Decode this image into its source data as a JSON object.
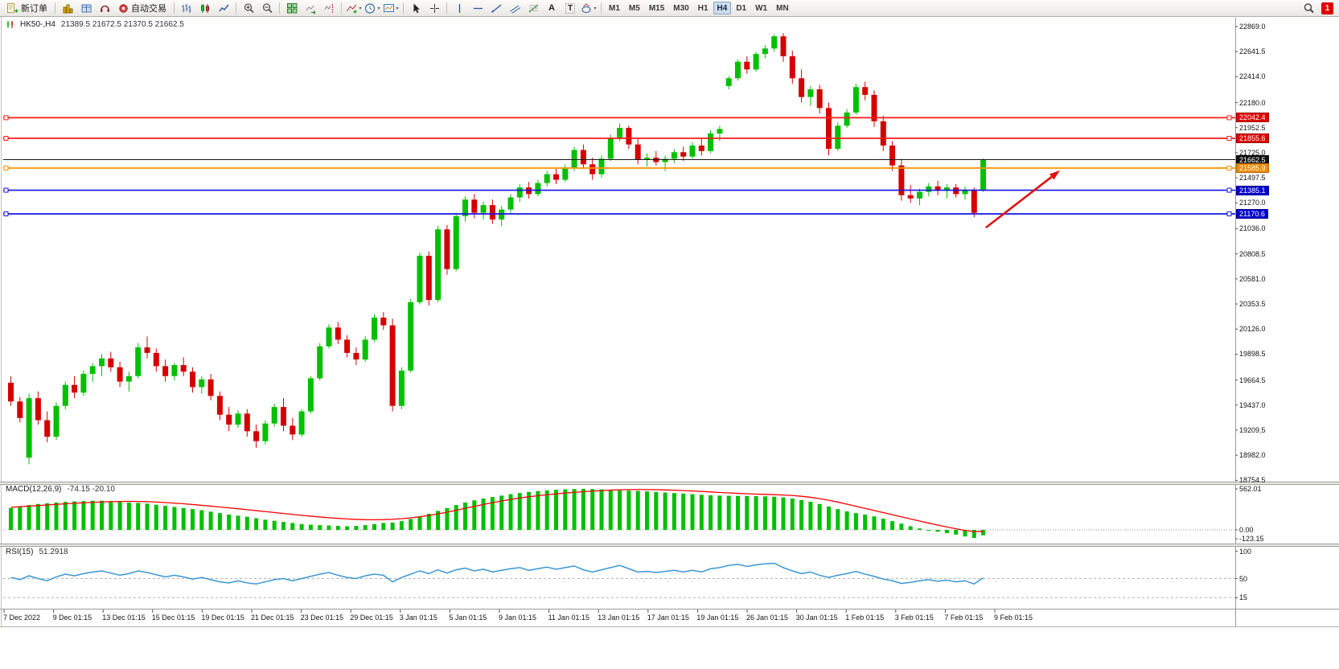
{
  "toolbar": {
    "new_order_label": "新订单",
    "auto_trading_label": "自动交易",
    "text_tool": "A",
    "label_tool": "T",
    "timeframes": [
      "M1",
      "M5",
      "M15",
      "M30",
      "H1",
      "H4",
      "D1",
      "W1",
      "MN"
    ],
    "active_timeframe": "H4",
    "notification_badge": "1"
  },
  "chart": {
    "title": "HK50-,H4",
    "ohlc": "21389.5 21672.5 21370.5 21662.5"
  },
  "colors": {
    "up_candle": "#00c000",
    "down_candle": "#d40000",
    "macd_histogram": "#00c000",
    "macd_signal": "#ff0000",
    "rsi_line": "#3c96d2"
  },
  "chart_data": {
    "type": "candlestick",
    "symbol": "HK50-",
    "timeframe": "H4",
    "price_axis_labels": [
      "22869.0",
      "22641.5",
      "22414.0",
      "22180.0",
      "21952.5",
      "21725.0",
      "21497.5",
      "21270.0",
      "21036.0",
      "20808.5",
      "20581.0",
      "20353.5",
      "20126.0",
      "19898.5",
      "19664.5",
      "19437.0",
      "19209.5",
      "18982.0",
      "18754.5"
    ],
    "time_axis_labels": [
      "7 Dec 2022",
      "9 Dec 01:15",
      "13 Dec 01:15",
      "15 Dec 01:15",
      "19 Dеc 01:15",
      "21 Dec 01:15",
      "23 Dec 01:15",
      "29 Dec 01:15",
      "3 Jan 01:15",
      "5 Jan 01:15",
      "9 Jan 01:15",
      "11 Jan 01:15",
      "13 Jan 01:15",
      "17 Jan 01:15",
      "19 Jan 01:15",
      "26 Jan 01:15",
      "30 Jan 01:15",
      "1 Feb 01:15",
      "3 Feb 01:15",
      "7 Feb 01:15",
      "9 Feb 01:15"
    ],
    "candles": [
      [
        19640,
        19700,
        19430,
        19470
      ],
      [
        19470,
        19510,
        19280,
        19320
      ],
      [
        18960,
        19540,
        18900,
        19500
      ],
      [
        19500,
        19560,
        19260,
        19300
      ],
      [
        19300,
        19380,
        19100,
        19150
      ],
      [
        19150,
        19460,
        19120,
        19430
      ],
      [
        19430,
        19650,
        19400,
        19620
      ],
      [
        19620,
        19700,
        19500,
        19550
      ],
      [
        19550,
        19750,
        19520,
        19720
      ],
      [
        19720,
        19820,
        19650,
        19790
      ],
      [
        19790,
        19900,
        19700,
        19860
      ],
      [
        19860,
        19920,
        19740,
        19780
      ],
      [
        19780,
        19830,
        19600,
        19650
      ],
      [
        19650,
        19740,
        19560,
        19700
      ],
      [
        19700,
        20000,
        19680,
        19960
      ],
      [
        19960,
        20060,
        19860,
        19910
      ],
      [
        19910,
        19950,
        19740,
        19790
      ],
      [
        19790,
        19850,
        19650,
        19700
      ],
      [
        19700,
        19820,
        19660,
        19800
      ],
      [
        19800,
        19870,
        19700,
        19740
      ],
      [
        19740,
        19780,
        19550,
        19600
      ],
      [
        19600,
        19700,
        19540,
        19670
      ],
      [
        19670,
        19720,
        19480,
        19520
      ],
      [
        19520,
        19560,
        19300,
        19350
      ],
      [
        19350,
        19420,
        19200,
        19260
      ],
      [
        19260,
        19390,
        19230,
        19360
      ],
      [
        19360,
        19400,
        19150,
        19200
      ],
      [
        19200,
        19260,
        19050,
        19110
      ],
      [
        19110,
        19300,
        19080,
        19270
      ],
      [
        19270,
        19450,
        19240,
        19420
      ],
      [
        19420,
        19500,
        19200,
        19250
      ],
      [
        19250,
        19320,
        19120,
        19170
      ],
      [
        19170,
        19400,
        19150,
        19380
      ],
      [
        19380,
        19700,
        19360,
        19680
      ],
      [
        19680,
        20000,
        19660,
        19970
      ],
      [
        19970,
        20170,
        19950,
        20140
      ],
      [
        20140,
        20190,
        19990,
        20030
      ],
      [
        20030,
        20070,
        19870,
        19910
      ],
      [
        19910,
        19960,
        19800,
        19850
      ],
      [
        19850,
        20060,
        19830,
        20030
      ],
      [
        20030,
        20260,
        20010,
        20230
      ],
      [
        20230,
        20280,
        20120,
        20160
      ],
      [
        20160,
        20220,
        19380,
        19430
      ],
      [
        19430,
        19780,
        19400,
        19750
      ],
      [
        19750,
        20400,
        19730,
        20370
      ],
      [
        20370,
        20820,
        20350,
        20790
      ],
      [
        20790,
        20830,
        20340,
        20390
      ],
      [
        20390,
        21060,
        20370,
        21030
      ],
      [
        21030,
        21070,
        20620,
        20670
      ],
      [
        20670,
        21180,
        20650,
        21150
      ],
      [
        21150,
        21330,
        21100,
        21300
      ],
      [
        21300,
        21350,
        21130,
        21180
      ],
      [
        21180,
        21280,
        21120,
        21250
      ],
      [
        21250,
        21300,
        21080,
        21120
      ],
      [
        21120,
        21240,
        21060,
        21210
      ],
      [
        21210,
        21350,
        21180,
        21320
      ],
      [
        21320,
        21440,
        21280,
        21410
      ],
      [
        21410,
        21460,
        21310,
        21350
      ],
      [
        21350,
        21480,
        21330,
        21450
      ],
      [
        21450,
        21560,
        21420,
        21530
      ],
      [
        21530,
        21580,
        21440,
        21480
      ],
      [
        21480,
        21620,
        21460,
        21590
      ],
      [
        21590,
        21780,
        21560,
        21750
      ],
      [
        21750,
        21800,
        21580,
        21620
      ],
      [
        21620,
        21680,
        21480,
        21530
      ],
      [
        21530,
        21700,
        21500,
        21670
      ],
      [
        21670,
        21890,
        21650,
        21860
      ],
      [
        21860,
        21990,
        21830,
        21950
      ],
      [
        21950,
        21970,
        21760,
        21800
      ],
      [
        21800,
        21850,
        21620,
        21660
      ],
      [
        21660,
        21720,
        21600,
        21680
      ],
      [
        21680,
        21740,
        21610,
        21640
      ],
      [
        21640,
        21700,
        21560,
        21670
      ],
      [
        21670,
        21760,
        21630,
        21730
      ],
      [
        21730,
        21780,
        21650,
        21690
      ],
      [
        21690,
        21820,
        21670,
        21790
      ],
      [
        21790,
        21850,
        21700,
        21740
      ],
      [
        21740,
        21930,
        21720,
        21900
      ],
      [
        21900,
        21970,
        21830,
        21940
      ],
      [
        22330,
        22420,
        22300,
        22400
      ],
      [
        22400,
        22570,
        22380,
        22550
      ],
      [
        22550,
        22600,
        22440,
        22480
      ],
      [
        22480,
        22640,
        22460,
        22620
      ],
      [
        22620,
        22700,
        22580,
        22670
      ],
      [
        22670,
        22800,
        22640,
        22780
      ],
      [
        22780,
        22810,
        22550,
        22600
      ],
      [
        22600,
        22650,
        22350,
        22400
      ],
      [
        22400,
        22480,
        22180,
        22230
      ],
      [
        22230,
        22330,
        22150,
        22300
      ],
      [
        22300,
        22340,
        22080,
        22130
      ],
      [
        22130,
        22180,
        21700,
        21760
      ],
      [
        21760,
        22000,
        21740,
        21970
      ],
      [
        21970,
        22120,
        21950,
        22090
      ],
      [
        22090,
        22350,
        22070,
        22320
      ],
      [
        22320,
        22370,
        22200,
        22250
      ],
      [
        22250,
        22290,
        21960,
        22010
      ],
      [
        22010,
        22060,
        21740,
        21790
      ],
      [
        21790,
        21830,
        21560,
        21610
      ],
      [
        21610,
        21670,
        21290,
        21340
      ],
      [
        21340,
        21430,
        21270,
        21310
      ],
      [
        21310,
        21400,
        21250,
        21370
      ],
      [
        21370,
        21450,
        21330,
        21420
      ],
      [
        21420,
        21470,
        21340,
        21380
      ],
      [
        21380,
        21440,
        21310,
        21410
      ],
      [
        21410,
        21440,
        21320,
        21350
      ],
      [
        21350,
        21420,
        21300,
        21390
      ],
      [
        21390,
        21410,
        21140,
        21180
      ],
      [
        21389.5,
        21672.5,
        21370.5,
        21662.5
      ]
    ],
    "horizontal_levels": [
      {
        "price": 22042.4,
        "line": "#ff1a1a",
        "bg": "#dd0000",
        "handles": true
      },
      {
        "price": 21855.6,
        "line": "#ff1a1a",
        "bg": "#dd0000",
        "handles": true
      },
      {
        "price": 21662.5,
        "line": "#181818",
        "bg": "#101010",
        "handles": false,
        "role": "bid-price"
      },
      {
        "price": 21585.9,
        "line": "#ff9400",
        "bg": "#ee8a00",
        "handles": true
      },
      {
        "price": 21385.1,
        "line": "#1414e6",
        "bg": "#0000cc",
        "handles": true
      },
      {
        "price": 21170.6,
        "line": "#1414e6",
        "bg": "#0000cc",
        "handles": true
      }
    ],
    "annotation_arrow": {
      "from": [
        1226,
        283
      ],
      "to": [
        1318,
        212
      ],
      "color": "#e01010"
    },
    "macd": {
      "title": "MACD(12,26,9)",
      "current": "-74.15 -20.10",
      "scale_labels": [
        "562.01",
        "0.00",
        "-123.15"
      ],
      "histogram": [
        300,
        320,
        340,
        355,
        365,
        375,
        385,
        390,
        395,
        400,
        400,
        395,
        385,
        375,
        370,
        360,
        345,
        330,
        315,
        300,
        285,
        270,
        250,
        230,
        210,
        195,
        180,
        160,
        140,
        125,
        110,
        95,
        80,
        70,
        65,
        60,
        55,
        50,
        55,
        65,
        80,
        95,
        100,
        120,
        150,
        185,
        220,
        260,
        300,
        340,
        375,
        405,
        430,
        450,
        470,
        490,
        505,
        520,
        532,
        542,
        550,
        556,
        560,
        562,
        560,
        556,
        550,
        545,
        540,
        535,
        528,
        520,
        512,
        505,
        498,
        490,
        482,
        475,
        470,
        468,
        466,
        465,
        463,
        460,
        455,
        445,
        430,
        410,
        385,
        355,
        320,
        285,
        255,
        230,
        210,
        185,
        155,
        120,
        85,
        50,
        20,
        -5,
        -25,
        -45,
        -65,
        -90,
        -110,
        -74.15
      ],
      "signal": [
        310,
        318,
        326,
        334,
        342,
        350,
        358,
        365,
        372,
        378,
        383,
        387,
        390,
        391,
        390,
        387,
        382,
        375,
        367,
        358,
        348,
        337,
        326,
        314,
        302,
        290,
        277,
        264,
        251,
        238,
        225,
        212,
        200,
        188,
        177,
        167,
        158,
        150,
        144,
        140,
        139,
        141,
        146,
        154,
        165,
        180,
        198,
        219,
        243,
        269,
        296,
        323,
        349,
        374,
        397,
        418,
        437,
        454,
        469,
        482,
        494,
        505,
        515,
        524,
        532,
        539,
        545,
        550,
        553,
        554,
        553,
        551,
        548,
        544,
        539,
        533,
        527,
        520,
        513,
        507,
        501,
        496,
        491,
        487,
        483,
        478,
        471,
        461,
        447,
        429,
        407,
        381,
        353,
        324,
        295,
        266,
        237,
        208,
        179,
        150,
        121,
        93,
        66,
        40,
        15,
        -8,
        -25,
        -20.1
      ]
    },
    "rsi": {
      "title": "RSI(15)",
      "current": "51.2918",
      "scale_labels": [
        "100",
        "50",
        "15"
      ],
      "levels": [
        50,
        15
      ],
      "values": [
        52,
        48,
        55,
        50,
        46,
        53,
        58,
        55,
        59,
        62,
        64,
        60,
        56,
        59,
        64,
        61,
        57,
        53,
        56,
        53,
        49,
        52,
        48,
        44,
        42,
        46,
        42,
        40,
        44,
        48,
        50,
        46,
        50,
        54,
        58,
        61,
        56,
        52,
        50,
        55,
        58,
        56,
        44,
        52,
        58,
        64,
        59,
        66,
        60,
        66,
        69,
        64,
        67,
        62,
        65,
        68,
        70,
        65,
        68,
        71,
        67,
        70,
        73,
        66,
        62,
        66,
        70,
        74,
        68,
        62,
        63,
        61,
        63,
        65,
        62,
        65,
        62,
        68,
        70,
        74,
        76,
        72,
        75,
        77,
        78,
        70,
        64,
        59,
        62,
        56,
        52,
        56,
        59,
        63,
        58,
        54,
        49,
        46,
        41,
        43,
        46,
        48,
        45,
        47,
        44,
        46,
        40,
        51.29
      ]
    }
  }
}
